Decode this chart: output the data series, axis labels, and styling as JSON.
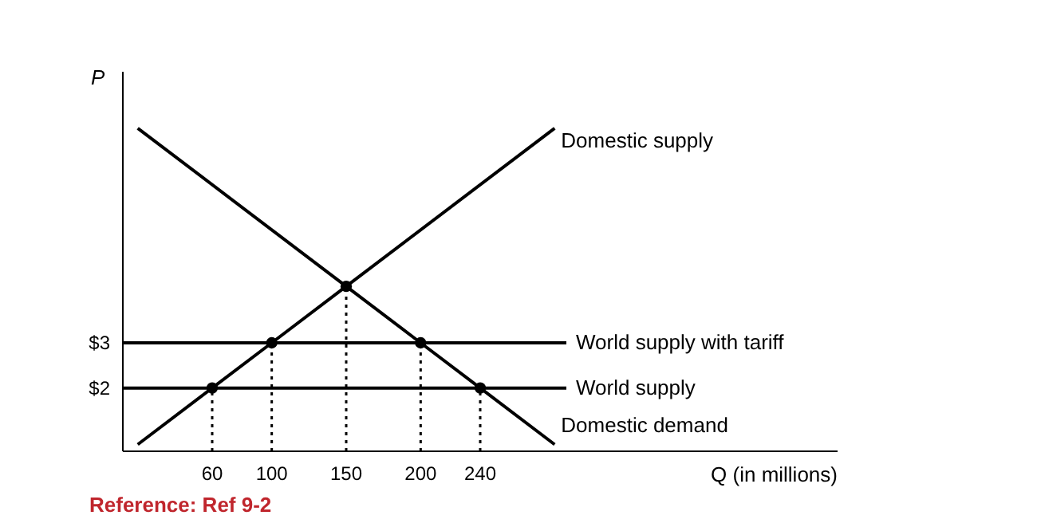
{
  "chart_data": {
    "type": "line",
    "xlabel": "Q (in millions)",
    "ylabel": "P",
    "xlim": [
      0,
      480
    ],
    "ylim": [
      0.6,
      9
    ],
    "xticks": [
      60,
      100,
      150,
      200,
      240
    ],
    "yticks": [
      {
        "value": 2,
        "label": "$2"
      },
      {
        "value": 3,
        "label": "$3"
      }
    ],
    "grid": false,
    "marker": "none",
    "line_style": "solid",
    "series": [
      {
        "name": "Domestic supply",
        "color": "#000000",
        "x": [
          10,
          60,
          100,
          150,
          290
        ],
        "values": [
          0.75,
          2,
          3,
          4.25,
          7.75
        ]
      },
      {
        "name": "Domestic demand",
        "color": "#000000",
        "x": [
          10,
          150,
          200,
          240,
          290
        ],
        "values": [
          7.75,
          4.25,
          3,
          2,
          0.75
        ]
      },
      {
        "type": "scatter",
        "color": "#000000",
        "marker": "circle",
        "x": [
          60,
          100,
          150,
          200,
          240
        ],
        "values": [
          2,
          3,
          4.25,
          3,
          2
        ]
      }
    ],
    "ref_lines": [
      {
        "axis": "y",
        "value": 3,
        "label": "World supply with tariff",
        "color": "#000000",
        "line_style": "solid"
      },
      {
        "axis": "y",
        "value": 2,
        "label": "World supply",
        "color": "#000000",
        "line_style": "solid"
      },
      {
        "axis": "x",
        "value": 60,
        "color": "#000000",
        "line_style": "dotted"
      },
      {
        "axis": "x",
        "value": 100,
        "color": "#000000",
        "line_style": "dotted"
      },
      {
        "axis": "x",
        "value": 150,
        "color": "#000000",
        "line_style": "dotted"
      },
      {
        "axis": "x",
        "value": 200,
        "color": "#000000",
        "line_style": "dotted"
      },
      {
        "axis": "x",
        "value": 240,
        "color": "#000000",
        "line_style": "dotted"
      }
    ],
    "annotations": [
      "Reference: Ref 9-2"
    ]
  }
}
